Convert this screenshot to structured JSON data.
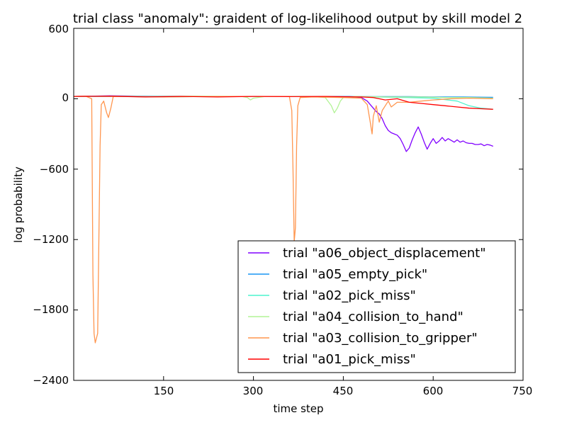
{
  "chart_data": {
    "type": "line",
    "title": "trial class \"anomaly\": graident of log-likelihood output by skill model 2",
    "xlabel": "time step",
    "ylabel": "log probability",
    "xlim": [
      0,
      750
    ],
    "ylim": [
      -2400,
      600
    ],
    "xticks": [
      "150",
      "300",
      "450",
      "600",
      "750"
    ],
    "yticks": [
      "600",
      "0",
      "−600",
      "−1200",
      "−1800",
      "−2400"
    ],
    "legend_position": "lower-right",
    "grid": false,
    "series": [
      {
        "name": "trial \"a06_object_displacement\"",
        "color": "#8000ff",
        "points": [
          [
            0,
            20
          ],
          [
            60,
            25
          ],
          [
            120,
            22
          ],
          [
            200,
            20
          ],
          [
            300,
            18
          ],
          [
            380,
            20
          ],
          [
            460,
            18
          ],
          [
            480,
            10
          ],
          [
            490,
            -20
          ],
          [
            495,
            -50
          ],
          [
            500,
            -80
          ],
          [
            505,
            -110
          ],
          [
            510,
            -130
          ],
          [
            515,
            -170
          ],
          [
            520,
            -230
          ],
          [
            525,
            -270
          ],
          [
            530,
            -290
          ],
          [
            535,
            -300
          ],
          [
            540,
            -310
          ],
          [
            545,
            -340
          ],
          [
            550,
            -390
          ],
          [
            555,
            -450
          ],
          [
            560,
            -420
          ],
          [
            565,
            -350
          ],
          [
            570,
            -290
          ],
          [
            575,
            -240
          ],
          [
            580,
            -300
          ],
          [
            585,
            -370
          ],
          [
            590,
            -430
          ],
          [
            595,
            -380
          ],
          [
            600,
            -340
          ],
          [
            605,
            -380
          ],
          [
            610,
            -360
          ],
          [
            615,
            -330
          ],
          [
            620,
            -360
          ],
          [
            625,
            -340
          ],
          [
            630,
            -355
          ],
          [
            635,
            -370
          ],
          [
            640,
            -350
          ],
          [
            645,
            -370
          ],
          [
            650,
            -360
          ],
          [
            655,
            -375
          ],
          [
            660,
            -380
          ],
          [
            665,
            -380
          ],
          [
            670,
            -390
          ],
          [
            675,
            -390
          ],
          [
            680,
            -385
          ],
          [
            685,
            -400
          ],
          [
            690,
            -390
          ],
          [
            695,
            -395
          ],
          [
            700,
            -405
          ]
        ]
      },
      {
        "name": "trial \"a05_empty_pick\"",
        "color": "#1996f3",
        "points": [
          [
            0,
            20
          ],
          [
            100,
            22
          ],
          [
            200,
            20
          ],
          [
            300,
            20
          ],
          [
            400,
            20
          ],
          [
            500,
            18
          ],
          [
            560,
            18
          ],
          [
            600,
            15
          ],
          [
            650,
            15
          ],
          [
            700,
            12
          ]
        ]
      },
      {
        "name": "trial \"a02_pick_miss\"",
        "color": "#4df3ce",
        "points": [
          [
            0,
            20
          ],
          [
            80,
            20
          ],
          [
            150,
            15
          ],
          [
            200,
            18
          ],
          [
            300,
            20
          ],
          [
            400,
            18
          ],
          [
            500,
            15
          ],
          [
            560,
            10
          ],
          [
            600,
            5
          ],
          [
            640,
            -20
          ],
          [
            660,
            -60
          ],
          [
            680,
            -80
          ],
          [
            700,
            -90
          ]
        ]
      },
      {
        "name": "trial \"a04_collision_to_hand\"",
        "color": "#b2f396",
        "points": [
          [
            0,
            20
          ],
          [
            60,
            22
          ],
          [
            120,
            20
          ],
          [
            200,
            22
          ],
          [
            280,
            20
          ],
          [
            290,
            10
          ],
          [
            295,
            -10
          ],
          [
            300,
            5
          ],
          [
            320,
            20
          ],
          [
            400,
            18
          ],
          [
            420,
            10
          ],
          [
            430,
            -60
          ],
          [
            435,
            -120
          ],
          [
            440,
            -80
          ],
          [
            445,
            -20
          ],
          [
            450,
            10
          ],
          [
            470,
            20
          ],
          [
            520,
            15
          ],
          [
            580,
            15
          ],
          [
            620,
            10
          ],
          [
            660,
            10
          ],
          [
            700,
            5
          ]
        ]
      },
      {
        "name": "trial \"a03_collision_to_gripper\"",
        "color": "#ff964f",
        "points": [
          [
            0,
            20
          ],
          [
            20,
            22
          ],
          [
            30,
            0
          ],
          [
            32,
            -1500
          ],
          [
            34,
            -2000
          ],
          [
            36,
            -2080
          ],
          [
            38,
            -2040
          ],
          [
            40,
            -2000
          ],
          [
            42,
            -1200
          ],
          [
            44,
            -400
          ],
          [
            46,
            -50
          ],
          [
            50,
            -20
          ],
          [
            55,
            -120
          ],
          [
            58,
            -160
          ],
          [
            62,
            -80
          ],
          [
            66,
            20
          ],
          [
            100,
            18
          ],
          [
            150,
            15
          ],
          [
            200,
            18
          ],
          [
            280,
            20
          ],
          [
            360,
            20
          ],
          [
            364,
            -100
          ],
          [
            366,
            -600
          ],
          [
            368,
            -1220
          ],
          [
            370,
            -1100
          ],
          [
            372,
            -400
          ],
          [
            374,
            -60
          ],
          [
            378,
            10
          ],
          [
            400,
            15
          ],
          [
            450,
            10
          ],
          [
            480,
            5
          ],
          [
            490,
            -50
          ],
          [
            495,
            -200
          ],
          [
            498,
            -300
          ],
          [
            500,
            -150
          ],
          [
            505,
            -60
          ],
          [
            510,
            -200
          ],
          [
            515,
            -100
          ],
          [
            520,
            -60
          ],
          [
            525,
            -20
          ],
          [
            530,
            -70
          ],
          [
            540,
            -30
          ],
          [
            560,
            -30
          ],
          [
            580,
            -20
          ],
          [
            600,
            -10
          ],
          [
            630,
            0
          ],
          [
            660,
            5
          ],
          [
            700,
            0
          ]
        ]
      },
      {
        "name": "trial \"a01_pick_miss\"",
        "color": "#ff0000",
        "points": [
          [
            0,
            20
          ],
          [
            60,
            22
          ],
          [
            120,
            15
          ],
          [
            180,
            20
          ],
          [
            240,
            15
          ],
          [
            300,
            20
          ],
          [
            360,
            18
          ],
          [
            420,
            20
          ],
          [
            480,
            15
          ],
          [
            500,
            10
          ],
          [
            520,
            -10
          ],
          [
            540,
            0
          ],
          [
            560,
            -30
          ],
          [
            580,
            -40
          ],
          [
            600,
            -50
          ],
          [
            620,
            -60
          ],
          [
            640,
            -70
          ],
          [
            660,
            -80
          ],
          [
            680,
            -85
          ],
          [
            700,
            -90
          ]
        ]
      }
    ]
  }
}
